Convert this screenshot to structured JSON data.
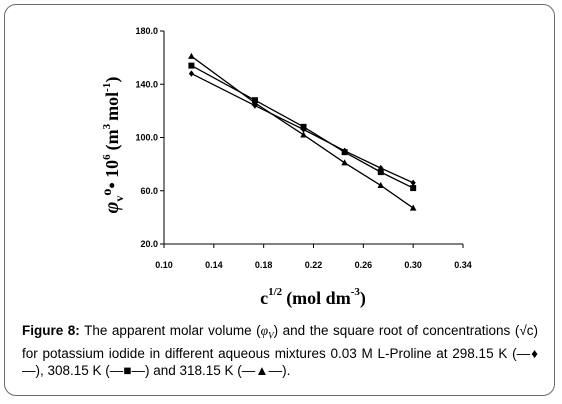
{
  "chart_data": {
    "type": "line",
    "title": "",
    "xlabel": "c",
    "xlabel_sup": "1/2",
    "xlabel_unit": "(mol dm",
    "xlabel_unit_sup": "-3",
    "xlabel_unit_close": ")",
    "ylabel": "φ",
    "ylabel_sub": "v",
    "ylabel_rest": "o",
    "ylabel_dot": "• 10",
    "ylabel_exp": "6",
    "ylabel_unit": "(m",
    "ylabel_unit_sup": "3",
    "ylabel_unit_mid": "mol",
    "ylabel_unit_sup2": "-1",
    "ylabel_unit_close": ")",
    "xlim": [
      0.1,
      0.34
    ],
    "ylim": [
      20.0,
      180.0
    ],
    "x_ticks": [
      "0.10",
      "0.14",
      "0.18",
      "0.22",
      "0.26",
      "0.30",
      "0.34"
    ],
    "y_ticks": [
      "20.0",
      "60.0",
      "100.0",
      "140.0",
      "180.0"
    ],
    "grid": false,
    "series": [
      {
        "marker": "diamond",
        "x": [
          0.122,
          0.173,
          0.212,
          0.245,
          0.274,
          0.3
        ],
        "y": [
          148.0,
          124.0,
          106.0,
          90.0,
          77.0,
          66.0
        ]
      },
      {
        "marker": "square",
        "x": [
          0.122,
          0.173,
          0.212,
          0.245,
          0.274,
          0.3
        ],
        "y": [
          154.0,
          128.0,
          108.0,
          89.0,
          74.0,
          62.0
        ]
      },
      {
        "marker": "triangle",
        "x": [
          0.122,
          0.173,
          0.212,
          0.245,
          0.274,
          0.3
        ],
        "y": [
          161.0,
          126.0,
          102.0,
          81.0,
          64.0,
          47.0
        ]
      }
    ]
  },
  "caption": {
    "label": "Figure 8:",
    "text_1": " The apparent molar volume (",
    "symbol": "φ",
    "symbol_sub": "V",
    "text_2": ") and the square root of concentrations (√c) for potassium iodide in different aqueous mixtures 0.03 M L-Proline at 298.15 K (",
    "legend_1": "—♦—",
    "text_3": "), 308.15 K (",
    "legend_2": "—■—",
    "text_4": ") and 318.15 K (",
    "legend_3": "—▲—",
    "text_5": ")."
  }
}
